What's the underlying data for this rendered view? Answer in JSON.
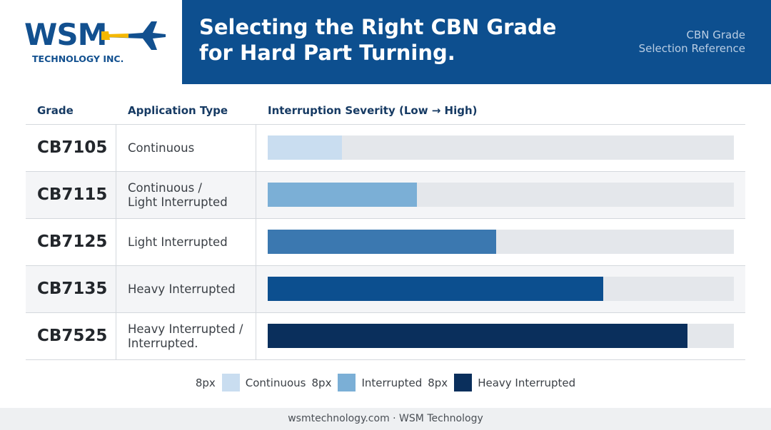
{
  "logo": {
    "name": "WSM",
    "subtitle": "TECHNOLOGY INC."
  },
  "header": {
    "title": [
      "Selecting the Right CBN Grade",
      "for Hard Part Turning."
    ],
    "side": [
      "CBN Grade",
      "Selection Reference"
    ]
  },
  "table": {
    "columns": [
      "Grade",
      "Application Type",
      "Interruption Severity (Low → High)"
    ],
    "rows": [
      {
        "grade": "CB7105",
        "application": [
          "Continuous"
        ],
        "severity": 16,
        "color": "#c9ddf0"
      },
      {
        "grade": "CB7115",
        "application": [
          "Continuous /",
          "Light Interrupted"
        ],
        "severity": 32,
        "color": "#7bafd6"
      },
      {
        "grade": "CB7125",
        "application": [
          "Light Interrupted"
        ],
        "severity": 49,
        "color": "#3b78b0"
      },
      {
        "grade": "CB7135",
        "application": [
          "Heavy Interrupted"
        ],
        "severity": 72,
        "color": "#0c4f8f"
      },
      {
        "grade": "CB7525",
        "application": [
          "Heavy Interrupted /",
          "Interrupted."
        ],
        "severity": 90,
        "color": "#0a2f5c"
      }
    ]
  },
  "legend": [
    {
      "size": "8px",
      "label": "Continuous",
      "color": "#c9ddf0"
    },
    {
      "size": "8px",
      "label": "Interrupted",
      "color": "#7bafd6"
    },
    {
      "size": "8px",
      "label": "Heavy Interrupted",
      "color": "#0a2f5c"
    }
  ],
  "footer": "wsmtechnology.com · WSM Technology"
}
